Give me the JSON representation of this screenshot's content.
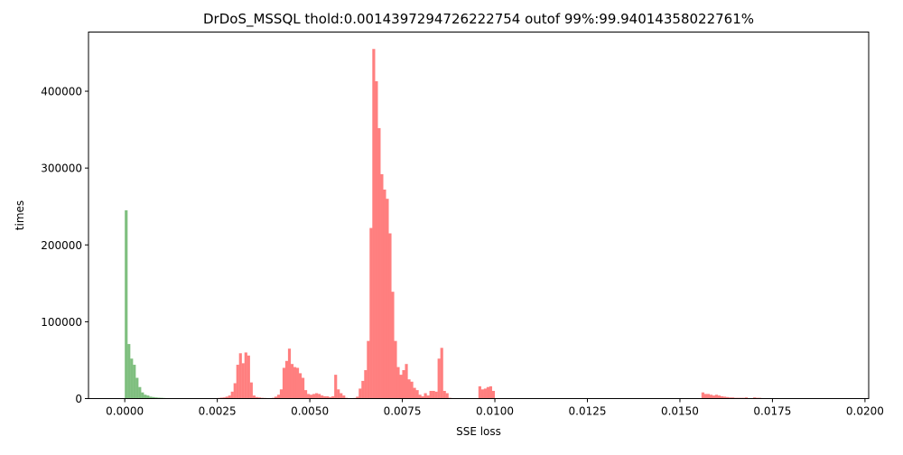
{
  "chart_data": {
    "type": "bar",
    "title": "DrDoS_MSSQL thold:0.0014397294726222754 outof 99%:99.94014358022761%",
    "xlabel": "SSE loss",
    "ylabel": "times",
    "xlim": [
      -0.00098,
      0.0201
    ],
    "ylim": [
      0,
      477000
    ],
    "x_ticks": [
      0.0,
      0.0025,
      0.005,
      0.0075,
      0.01,
      0.0125,
      0.015,
      0.0175,
      0.02
    ],
    "x_tick_labels": [
      "0.0000",
      "0.0025",
      "0.0050",
      "0.0075",
      "0.0100",
      "0.0125",
      "0.0150",
      "0.0175",
      "0.0200"
    ],
    "y_ticks": [
      0,
      100000,
      200000,
      300000,
      400000
    ],
    "y_tick_labels": [
      "0",
      "100000",
      "200000",
      "300000",
      "400000"
    ],
    "bin_width": 7.35e-05,
    "grid": false,
    "legend": "none",
    "series": [
      {
        "color": "#7fbf7f",
        "bin_starts": [
          0.0,
          7.35e-05,
          0.000147,
          0.0002205,
          0.000294,
          0.0003675,
          0.000441,
          0.0005145,
          0.000588,
          0.0006615,
          0.000735,
          0.0008085,
          0.000882,
          0.0009555,
          0.001029,
          0.0011025,
          0.001176,
          0.0012495,
          0.001323
        ],
        "values": [
          245000,
          71000,
          52000,
          44000,
          27000,
          15000,
          8000,
          5000,
          4000,
          2500,
          2000,
          1500,
          1200,
          1000,
          800,
          600,
          500,
          400,
          300
        ]
      },
      {
        "color": "#ff7f7f",
        "bin_starts": [
          0.00147,
          0.0015435,
          0.001617,
          0.0016905,
          0.001764,
          0.0018375,
          0.001911,
          0.0019845,
          0.002058,
          0.0021315,
          0.002205,
          0.0022785,
          0.002352,
          0.0024255,
          0.002499,
          0.0025725,
          0.002646,
          0.0027195,
          0.002793,
          0.0028665,
          0.00294,
          0.0030135,
          0.003087,
          0.0031605,
          0.003234,
          0.0033075,
          0.003381,
          0.0034545,
          0.003528,
          0.0036015,
          0.003675,
          0.0037485,
          0.003822,
          0.0038955,
          0.003969,
          0.0040425,
          0.004116,
          0.0041895,
          0.004263,
          0.0043365,
          0.00441,
          0.0044835,
          0.004557,
          0.0046305,
          0.004704,
          0.0047775,
          0.004851,
          0.0049245,
          0.004998,
          0.0050715,
          0.005145,
          0.0052185,
          0.005292,
          0.0053655,
          0.005439,
          0.0055125,
          0.005586,
          0.0056595,
          0.005733,
          0.0058065,
          0.00588,
          0.0059535,
          0.006027,
          0.0061005,
          0.006174,
          0.0062475,
          0.006321,
          0.0063945,
          0.006468,
          0.0065415,
          0.006615,
          0.0066885,
          0.006762,
          0.0068355,
          0.006909,
          0.0069825,
          0.007056,
          0.0071295,
          0.007203,
          0.0072765,
          0.00735,
          0.0074235,
          0.007497,
          0.0075705,
          0.007644,
          0.0077175,
          0.007791,
          0.0078645,
          0.007938,
          0.0080115,
          0.008085,
          0.0081585,
          0.008232,
          0.0083055,
          0.008379,
          0.0084525,
          0.008526,
          0.0085995,
          0.008673,
          0.0087465,
          0.00882,
          0.0088935,
          0.008967,
          0.0090405,
          0.009114,
          0.0091875,
          0.009261,
          0.0093345,
          0.009408,
          0.0094815,
          0.009555,
          0.0096285,
          0.009702,
          0.0097755,
          0.009849,
          0.0099225,
          0.015582,
          0.0156555,
          0.015729,
          0.0158025,
          0.015876,
          0.0159495,
          0.016023,
          0.0160965,
          0.01617,
          0.0162435,
          0.016317,
          0.0163905,
          0.016464,
          0.0165375,
          0.016611,
          0.0166845,
          0.016758,
          0.0168315,
          0.016905,
          0.0169785,
          0.017052,
          0.0171255,
          0.017199,
          0.0172725,
          0.017346,
          0.0174195,
          0.017493,
          0.0175665,
          0.01764,
          0.0177135,
          0.017787,
          0.0178605
        ],
        "values": [
          300,
          300,
          400,
          500,
          400,
          500,
          400,
          300,
          500,
          400,
          300,
          400,
          300,
          500,
          800,
          1200,
          1500,
          2500,
          4000,
          9000,
          20000,
          44000,
          59000,
          46000,
          60000,
          56000,
          21000,
          4000,
          2000,
          1500,
          1000,
          800,
          600,
          500,
          1000,
          2500,
          5000,
          12000,
          40000,
          49000,
          65000,
          45000,
          41000,
          40000,
          33000,
          27000,
          11000,
          6000,
          5000,
          6000,
          7000,
          6000,
          4000,
          3000,
          3000,
          2000,
          3000,
          31000,
          12000,
          7000,
          4000,
          1000,
          500,
          300,
          800,
          2500,
          13000,
          23000,
          37000,
          75000,
          222000,
          455000,
          413000,
          352000,
          292000,
          272000,
          260000,
          215000,
          139000,
          75000,
          41000,
          31000,
          37000,
          45000,
          25000,
          22000,
          14000,
          11000,
          5000,
          3000,
          7000,
          4000,
          10000,
          10000,
          9000,
          52000,
          66000,
          10000,
          7000,
          1000,
          500,
          400,
          300,
          300,
          200,
          200,
          200,
          100,
          100,
          100,
          16000,
          12000,
          13000,
          15000,
          16000,
          10000,
          8000,
          6000,
          6000,
          5000,
          4000,
          5000,
          4000,
          3000,
          2500,
          2000,
          1500,
          1500,
          1000,
          1000,
          1000,
          1000,
          1500,
          500,
          500,
          1500,
          1000,
          1000,
          500,
          400,
          300,
          200
        ]
      }
    ]
  }
}
